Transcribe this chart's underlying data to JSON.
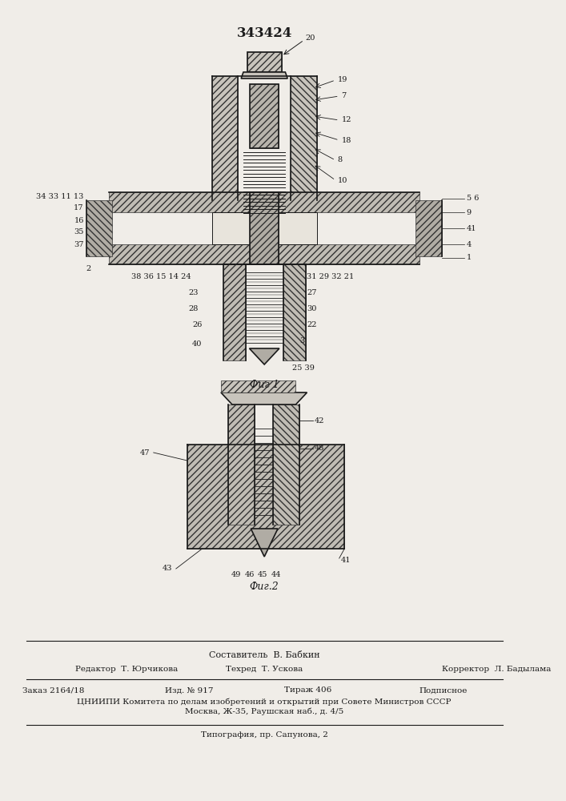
{
  "patent_number": "343424",
  "fig1_label": "Фиг 1",
  "fig2_label": "Фиг.2",
  "sestavitel": "Составитель  В. Бабкин",
  "redaktor": "Редактор  Т. Юрчикова",
  "tehred": "Техред  Т. Ускова",
  "korrektor": "Корректор  Л. Бадылама",
  "zakaz": "Заказ 2164/18",
  "izd": "Изд. № 917",
  "tirazh": "Тираж 406",
  "podpisnoe": "Подписное",
  "tsniipi": "ЦНИИПИ Комитета по делам изобретений и открытий при Совете Министров СССР",
  "moskva": "Москва, Ж-35, Раушская наб., д. 4/5",
  "tipografia": "Типография, пр. Сапунова, 2",
  "bg_color": "#f0ede8",
  "line_color": "#1a1a1a",
  "hatch_color": "#555555",
  "fig_width": 7.07,
  "fig_height": 10.0,
  "dpi": 100
}
